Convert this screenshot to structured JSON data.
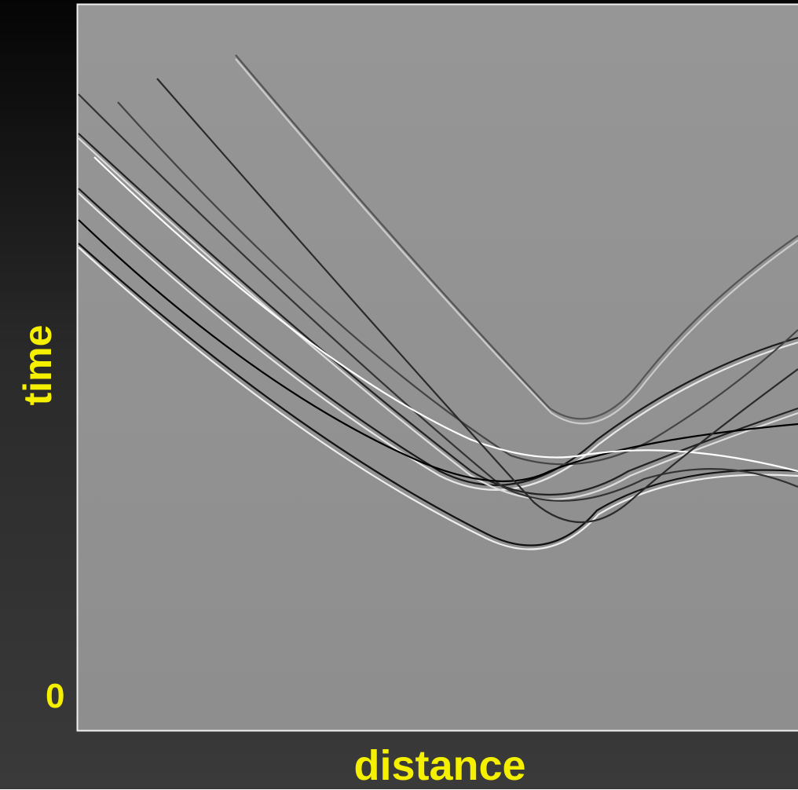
{
  "labels": {
    "y_axis": "time",
    "x_axis": "distance",
    "origin": "0"
  }
}
